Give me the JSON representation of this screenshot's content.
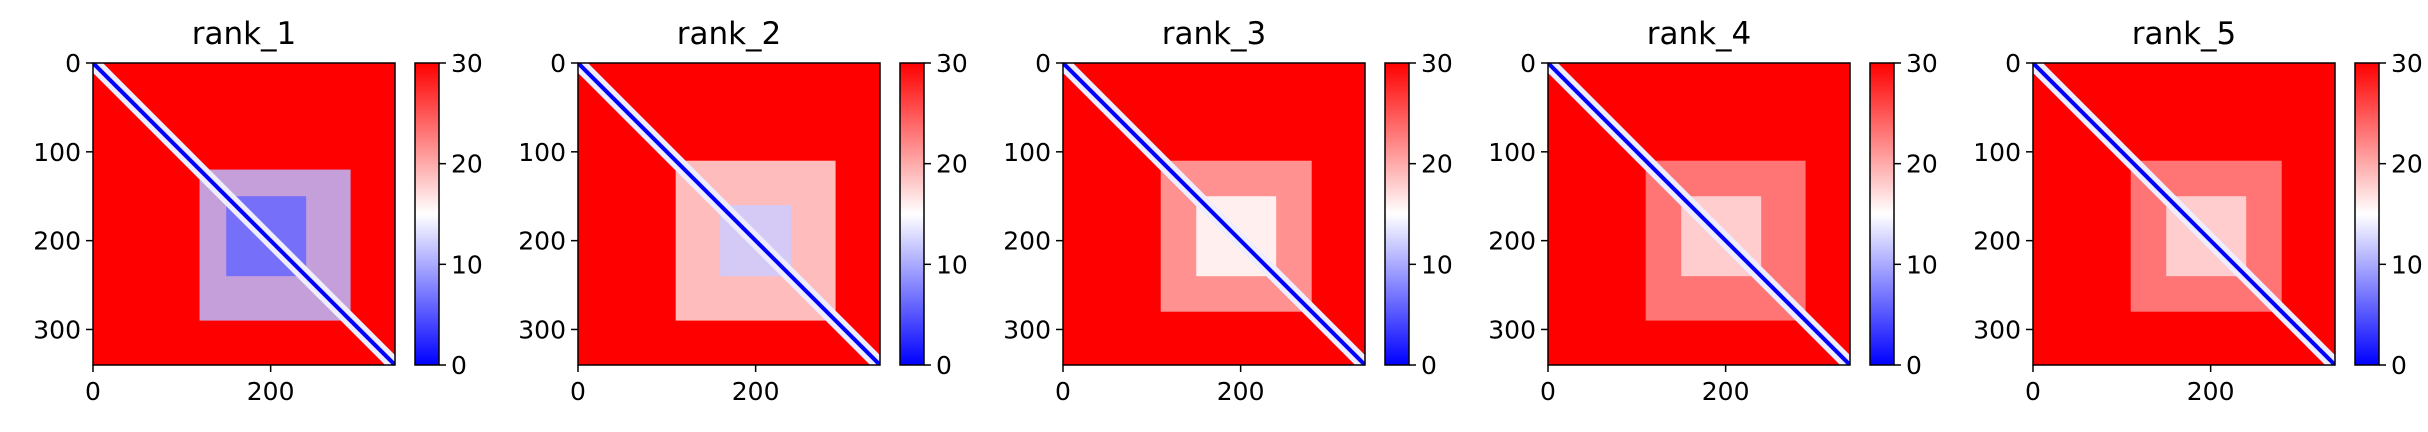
{
  "chart_data": [
    {
      "type": "heatmap",
      "title": "rank_1",
      "x_ticks": [
        0,
        200
      ],
      "y_ticks": [
        0,
        100,
        200,
        300
      ],
      "xlim": [
        0,
        340
      ],
      "ylim": [
        340,
        0
      ],
      "colorbar": {
        "ticks": [
          0,
          10,
          20,
          30
        ],
        "range": [
          0,
          30
        ],
        "colormap": [
          "#0000ff",
          "#ffffff",
          "#ff0000"
        ]
      },
      "blocks": [
        {
          "x_range": [
            120,
            290
          ],
          "y_range": [
            120,
            290
          ],
          "value": 11
        },
        {
          "x_range": [
            150,
            240
          ],
          "y_range": [
            150,
            240
          ],
          "value": 6
        }
      ]
    },
    {
      "type": "heatmap",
      "title": "rank_2",
      "x_ticks": [
        0,
        200
      ],
      "y_ticks": [
        0,
        100,
        200,
        300
      ],
      "xlim": [
        0,
        340
      ],
      "ylim": [
        340,
        0
      ],
      "colorbar": {
        "ticks": [
          0,
          10,
          20,
          30
        ],
        "range": [
          0,
          30
        ],
        "colormap": [
          "#0000ff",
          "#ffffff",
          "#ff0000"
        ]
      },
      "blocks": [
        {
          "x_range": [
            110,
            290
          ],
          "y_range": [
            110,
            290
          ],
          "value": 17
        },
        {
          "x_range": [
            160,
            240
          ],
          "y_range": [
            160,
            240
          ],
          "value": 12
        }
      ]
    },
    {
      "type": "heatmap",
      "title": "rank_3",
      "x_ticks": [
        0,
        200
      ],
      "y_ticks": [
        0,
        100,
        200,
        300
      ],
      "xlim": [
        0,
        340
      ],
      "ylim": [
        340,
        0
      ],
      "colorbar": {
        "ticks": [
          0,
          10,
          20,
          30
        ],
        "range": [
          0,
          30
        ],
        "colormap": [
          "#0000ff",
          "#ffffff",
          "#ff0000"
        ]
      },
      "blocks": [
        {
          "x_range": [
            110,
            280
          ],
          "y_range": [
            110,
            280
          ],
          "value": 20
        },
        {
          "x_range": [
            150,
            240
          ],
          "y_range": [
            150,
            240
          ],
          "value": 15
        }
      ]
    },
    {
      "type": "heatmap",
      "title": "rank_4",
      "x_ticks": [
        0,
        200
      ],
      "y_ticks": [
        0,
        100,
        200,
        300
      ],
      "xlim": [
        0,
        340
      ],
      "ylim": [
        340,
        0
      ],
      "colorbar": {
        "ticks": [
          0,
          10,
          20,
          30
        ],
        "range": [
          0,
          30
        ],
        "colormap": [
          "#0000ff",
          "#ffffff",
          "#ff0000"
        ]
      },
      "blocks": [
        {
          "x_range": [
            110,
            290
          ],
          "y_range": [
            110,
            290
          ],
          "value": 22
        },
        {
          "x_range": [
            150,
            240
          ],
          "y_range": [
            150,
            240
          ],
          "value": 17
        }
      ]
    },
    {
      "type": "heatmap",
      "title": "rank_5",
      "x_ticks": [
        0,
        200
      ],
      "y_ticks": [
        0,
        100,
        200,
        300
      ],
      "xlim": [
        0,
        340
      ],
      "ylim": [
        340,
        0
      ],
      "colorbar": {
        "ticks": [
          0,
          10,
          20,
          30
        ],
        "range": [
          0,
          30
        ],
        "colormap": [
          "#0000ff",
          "#ffffff",
          "#ff0000"
        ]
      },
      "blocks": [
        {
          "x_range": [
            110,
            280
          ],
          "y_range": [
            110,
            280
          ],
          "value": 22
        },
        {
          "x_range": [
            150,
            240
          ],
          "y_range": [
            150,
            240
          ],
          "value": 17
        }
      ]
    }
  ]
}
